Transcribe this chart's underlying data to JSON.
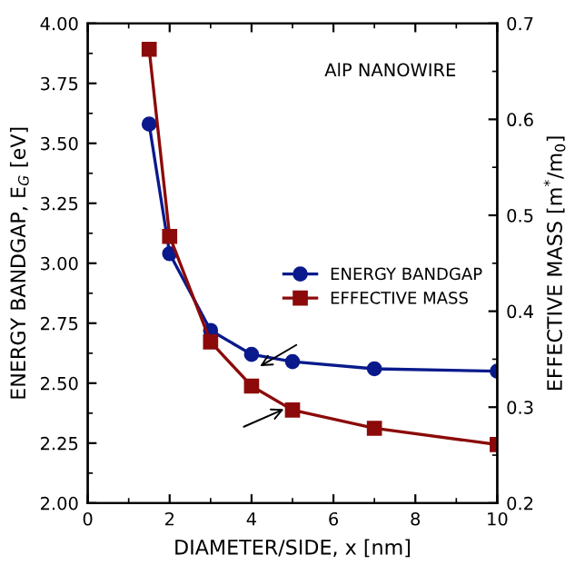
{
  "chart_data": {
    "type": "line",
    "x": [
      1.5,
      2,
      3,
      4,
      5,
      7,
      10
    ],
    "series": [
      {
        "name": "ENERGY BANDGAP",
        "color": "#0a1a8c",
        "marker": "circle",
        "values": [
          3.58,
          3.04,
          2.72,
          2.62,
          2.59,
          2.56,
          2.55
        ]
      },
      {
        "name": "EFFECTIVE MASS",
        "color": "#8c0a0a",
        "marker": "square",
        "axis": "y2",
        "values": [
          0.673,
          0.478,
          0.368,
          0.322,
          0.297,
          0.278,
          0.261
        ]
      }
    ],
    "xlabel": "DIAMETER/SIDE, x [nm]",
    "ylabel": "ENERGY BANDGAP, E$_{G}$ [eV]",
    "y2label": "EFFECTIVE MASS [m$^{*}$/m$_{0}$]",
    "annotations": [
      "AlP NANOWIRE"
    ],
    "xlim": [
      0,
      10
    ],
    "xticks": [
      0,
      2,
      4,
      6,
      8,
      10
    ],
    "ylim": [
      2.0,
      4.0
    ],
    "yticks": [
      {
        "value": 2.0,
        "label": "2.00"
      },
      {
        "value": 2.25,
        "label": "2.25"
      },
      {
        "value": 2.5,
        "label": "2.50"
      },
      {
        "value": 2.75,
        "label": "2.75"
      },
      {
        "value": 3.0,
        "label": "3.00"
      },
      {
        "value": 3.25,
        "label": "3.25"
      },
      {
        "value": 3.5,
        "label": "3.50"
      },
      {
        "value": 3.75,
        "label": "3.75"
      },
      {
        "value": 4.0,
        "label": "4.00"
      }
    ],
    "y2lim": [
      0.2,
      0.7
    ],
    "y2ticks": [
      0.2,
      0.3,
      0.4,
      0.5,
      0.6,
      0.7
    ],
    "legend": "right",
    "grid": false,
    "line_style": "solid"
  }
}
